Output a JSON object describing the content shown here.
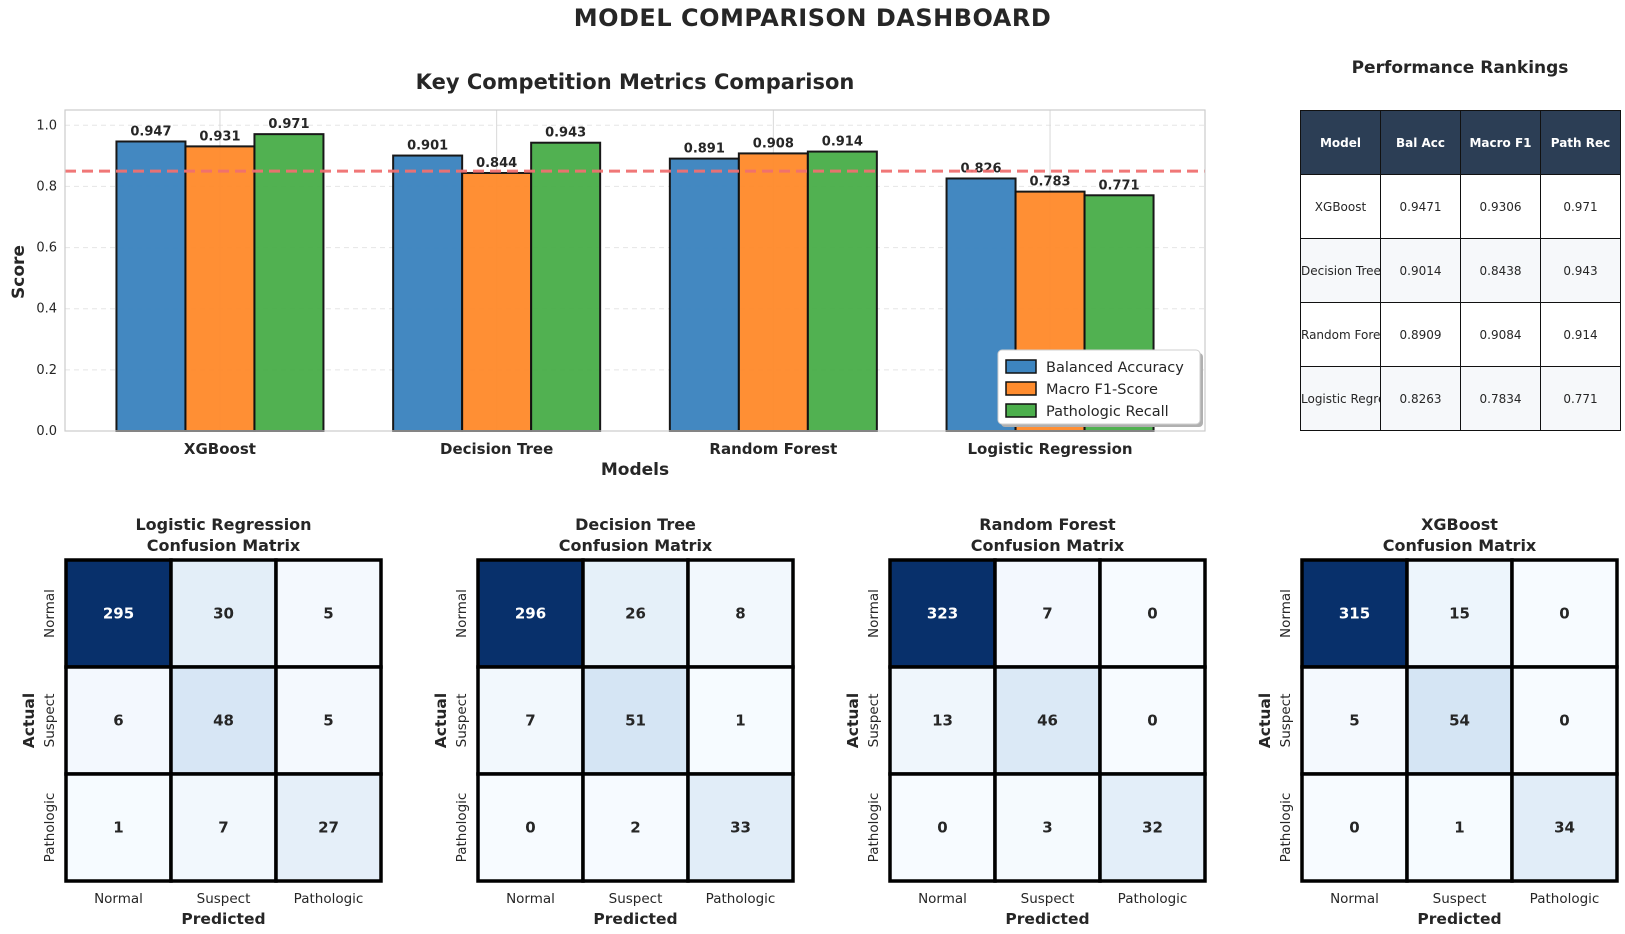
{
  "page": {
    "title": "MODEL COMPARISON DASHBOARD"
  },
  "colors": {
    "balanced_accuracy": "#3d85c0",
    "macro_f1": "#ff8c2e",
    "pathologic_recall": "#4caf4c",
    "reference_line": "#f07070",
    "table_header": "#2c3e55",
    "heatmap_low": "#f7fbff",
    "heatmap_high": "#08306b"
  },
  "chart_data": [
    {
      "type": "bar",
      "title": "Key Competition Metrics Comparison",
      "xlabel": "Models",
      "ylabel": "Score",
      "ylim": [
        0,
        1.05
      ],
      "yticks": [
        "0.0",
        "0.2",
        "0.4",
        "0.6",
        "0.8",
        "1.0"
      ],
      "categories": [
        "XGBoost",
        "Decision Tree",
        "Random Forest",
        "Logistic Regression"
      ],
      "series": [
        {
          "name": "Balanced Accuracy",
          "values": [
            0.947,
            0.901,
            0.891,
            0.826
          ],
          "labels": [
            "0.947",
            "0.901",
            "0.891",
            "0.826"
          ]
        },
        {
          "name": "Macro F1-Score",
          "values": [
            0.931,
            0.844,
            0.908,
            0.783
          ],
          "labels": [
            "0.931",
            "0.844",
            "0.908",
            "0.783"
          ]
        },
        {
          "name": "Pathologic Recall",
          "values": [
            0.971,
            0.943,
            0.914,
            0.771
          ],
          "labels": [
            "0.971",
            "0.943",
            "0.914",
            "0.771"
          ]
        }
      ],
      "reference_line": 0.85,
      "grid": true,
      "legend": "lower-right"
    },
    {
      "type": "table",
      "title": "Performance Rankings",
      "columns": [
        "Model",
        "Bal Acc",
        "Macro F1",
        "Path Rec"
      ],
      "rows": [
        [
          "XGBoost",
          "0.9471",
          "0.9306",
          "0.971"
        ],
        [
          "Decision Tree",
          "0.9014",
          "0.8438",
          "0.943"
        ],
        [
          "Random Forest",
          "0.8909",
          "0.9084",
          "0.914"
        ],
        [
          "Logistic Regression",
          "0.8263",
          "0.7834",
          "0.771"
        ]
      ]
    },
    {
      "type": "heatmap",
      "title": [
        "Logistic Regression",
        "Confusion Matrix"
      ],
      "xlabel": "Predicted",
      "ylabel": "Actual",
      "x_categories": [
        "Normal",
        "Suspect",
        "Pathologic"
      ],
      "y_categories": [
        "Normal",
        "Suspect",
        "Pathologic"
      ],
      "values": [
        [
          295,
          30,
          5
        ],
        [
          6,
          48,
          5
        ],
        [
          1,
          7,
          27
        ]
      ]
    },
    {
      "type": "heatmap",
      "title": [
        "Decision Tree",
        "Confusion Matrix"
      ],
      "xlabel": "Predicted",
      "ylabel": "Actual",
      "x_categories": [
        "Normal",
        "Suspect",
        "Pathologic"
      ],
      "y_categories": [
        "Normal",
        "Suspect",
        "Pathologic"
      ],
      "values": [
        [
          296,
          26,
          8
        ],
        [
          7,
          51,
          1
        ],
        [
          0,
          2,
          33
        ]
      ]
    },
    {
      "type": "heatmap",
      "title": [
        "Random Forest",
        "Confusion Matrix"
      ],
      "xlabel": "Predicted",
      "ylabel": "Actual",
      "x_categories": [
        "Normal",
        "Suspect",
        "Pathologic"
      ],
      "y_categories": [
        "Normal",
        "Suspect",
        "Pathologic"
      ],
      "values": [
        [
          323,
          7,
          0
        ],
        [
          13,
          46,
          0
        ],
        [
          0,
          3,
          32
        ]
      ]
    },
    {
      "type": "heatmap",
      "title": [
        "XGBoost",
        "Confusion Matrix"
      ],
      "xlabel": "Predicted",
      "ylabel": "Actual",
      "x_categories": [
        "Normal",
        "Suspect",
        "Pathologic"
      ],
      "y_categories": [
        "Normal",
        "Suspect",
        "Pathologic"
      ],
      "values": [
        [
          315,
          15,
          0
        ],
        [
          5,
          54,
          0
        ],
        [
          0,
          1,
          34
        ]
      ]
    }
  ]
}
